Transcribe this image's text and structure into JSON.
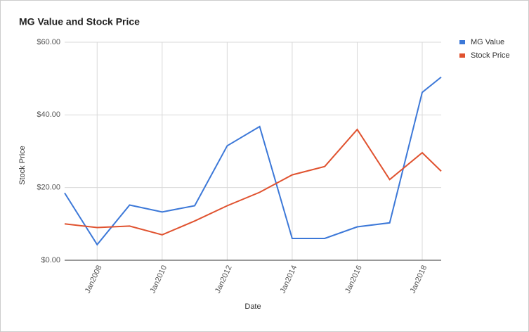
{
  "chart_data": {
    "type": "line",
    "title": "MG Value and Stock Price",
    "x_label": "Date",
    "y_label": "Stock Price",
    "x": [
      "2007-01",
      "2008-01",
      "2009-01",
      "2010-01",
      "2011-01",
      "2012-01",
      "2013-01",
      "2014-01",
      "2015-01",
      "2016-01",
      "2017-01",
      "2018-01",
      "2018-08"
    ],
    "series": [
      {
        "name": "MG Value",
        "color": "#3c78d8",
        "values": [
          18.5,
          4.3,
          15.2,
          13.3,
          15.0,
          31.5,
          36.8,
          6.0,
          6.0,
          9.2,
          10.3,
          46.2,
          50.4
        ]
      },
      {
        "name": "Stock Price",
        "color": "#e0522f",
        "values": [
          10.0,
          9.0,
          9.4,
          7.0,
          10.8,
          15.0,
          18.7,
          23.5,
          25.8,
          36.0,
          22.2,
          29.6,
          24.5
        ]
      }
    ],
    "xlim": [
      "2007-01",
      "2018-08"
    ],
    "xticks": [
      {
        "value": "2008-01",
        "label": "Jan2008"
      },
      {
        "value": "2010-01",
        "label": "Jan2010"
      },
      {
        "value": "2012-01",
        "label": "Jan2012"
      },
      {
        "value": "2014-01",
        "label": "Jan2014"
      },
      {
        "value": "2016-01",
        "label": "Jan2016"
      },
      {
        "value": "2018-01",
        "label": "Jan2018"
      }
    ],
    "ylim": [
      0,
      60
    ],
    "yticks": [
      {
        "value": 0,
        "label": "$0.00"
      },
      {
        "value": 20,
        "label": "$20.00"
      },
      {
        "value": 40,
        "label": "$40.00"
      },
      {
        "value": 60,
        "label": "$60.00"
      }
    ],
    "grid": true,
    "legend": "right"
  }
}
